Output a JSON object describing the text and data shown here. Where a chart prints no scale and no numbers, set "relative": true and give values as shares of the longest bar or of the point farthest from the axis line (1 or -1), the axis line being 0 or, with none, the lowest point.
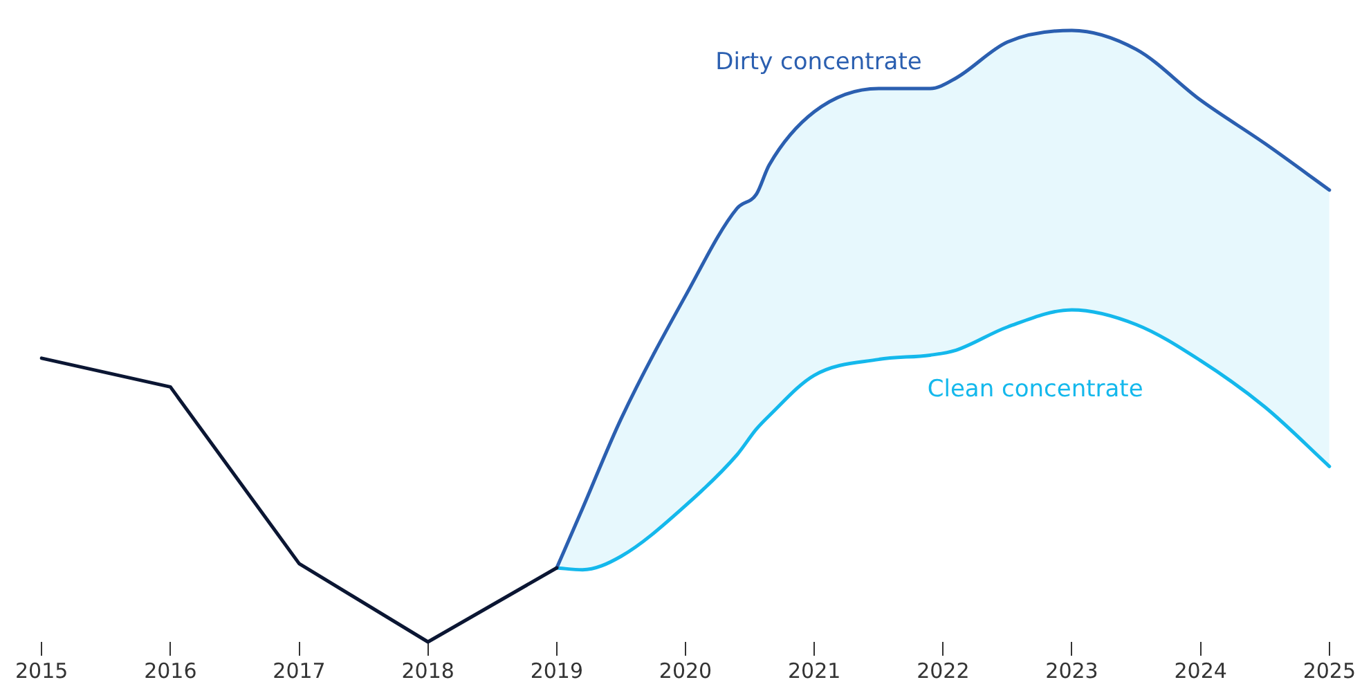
{
  "chart_data": {
    "type": "line",
    "relative": true,
    "xlim": [
      2015,
      2025
    ],
    "xticks": [
      2015,
      2016,
      2017,
      2018,
      2019,
      2020,
      2021,
      2022,
      2023,
      2024,
      2025
    ],
    "legend": false,
    "grid": false,
    "marker": "none",
    "line_style": "solid",
    "series": [
      {
        "color": "#0b1633",
        "x": [
          2015,
          2016,
          2017,
          2018,
          2019
        ],
        "values": [
          0.464,
          0.417,
          0.128,
          0,
          0.121
        ]
      },
      {
        "name": "Dirty concentrate",
        "color": "#2b5fb0",
        "x": [
          2019,
          2019.2,
          2019.5,
          2020,
          2020.4,
          2020.55,
          2020.65,
          2021,
          2021.5,
          2021.9,
          2022.1,
          2022.5,
          2023,
          2023.5,
          2024,
          2024.5,
          2025
        ],
        "values": [
          0.121,
          0.218,
          0.365,
          0.566,
          0.709,
          0.732,
          0.78,
          0.867,
          0.905,
          0.905,
          0.922,
          0.981,
          1,
          0.969,
          0.886,
          0.815,
          0.739
        ],
        "upper": [
          0.121,
          0.218,
          0.365,
          0.566,
          0.709,
          0.732,
          0.78,
          0.867,
          0.905,
          0.905,
          0.922,
          0.981,
          1,
          0.969,
          0.886,
          0.815,
          0.739
        ],
        "lower": [
          0.121,
          0.118,
          0.14,
          0.223,
          0.306,
          0.348,
          0.37,
          0.436,
          0.462,
          0.469,
          0.477,
          0.515,
          0.543,
          0.519,
          0.46,
          0.384,
          0.287
        ]
      },
      {
        "name": "Clean concentrate",
        "color": "#14b8ec",
        "x": [
          2019,
          2019.2,
          2019.5,
          2020,
          2020.4,
          2020.55,
          2020.65,
          2021,
          2021.5,
          2021.9,
          2022.1,
          2022.5,
          2023,
          2023.5,
          2024,
          2024.5,
          2025
        ],
        "values": [
          0.121,
          0.118,
          0.14,
          0.223,
          0.306,
          0.348,
          0.37,
          0.436,
          0.462,
          0.469,
          0.477,
          0.515,
          0.543,
          0.519,
          0.46,
          0.384,
          0.287
        ]
      }
    ]
  }
}
